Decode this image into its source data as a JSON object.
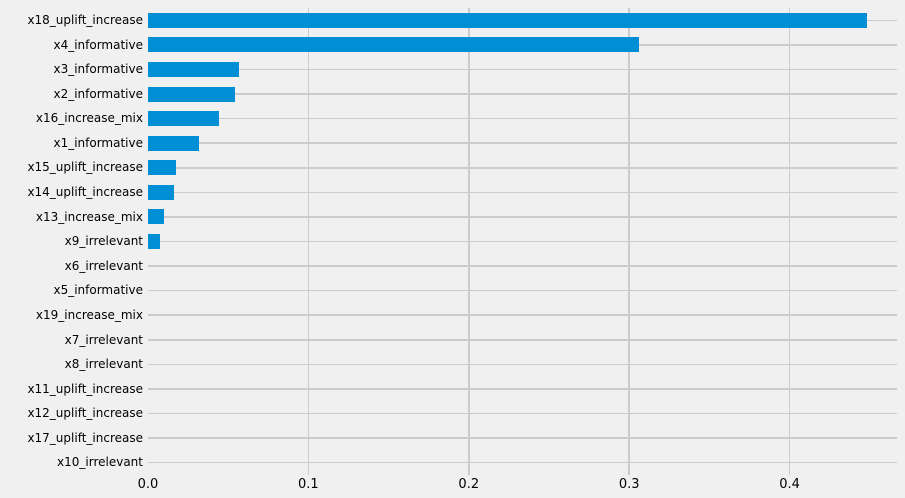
{
  "chart_data": {
    "type": "bar",
    "orientation": "horizontal",
    "title": "",
    "xlabel": "",
    "ylabel": "",
    "legend": "none",
    "grid": true,
    "categories": [
      "x18_uplift_increase",
      "x4_informative",
      "x3_informative",
      "x2_informative",
      "x16_increase_mix",
      "x1_informative",
      "x15_uplift_increase",
      "x14_uplift_increase",
      "x13_increase_mix",
      "x9_irrelevant",
      "x6_irrelevant",
      "x5_informative",
      "x19_increase_mix",
      "x7_irrelevant",
      "x8_irrelevant",
      "x11_uplift_increase",
      "x12_uplift_increase",
      "x17_uplift_increase",
      "x10_irrelevant"
    ],
    "values": [
      0.448,
      0.306,
      0.0565,
      0.0545,
      0.0441,
      0.0321,
      0.0177,
      0.0165,
      0.0102,
      0.0077,
      0,
      0,
      0,
      0,
      0,
      0,
      0,
      0,
      0
    ],
    "xlim": [
      0,
      0.467
    ],
    "x_ticks": [
      {
        "label": "0.0",
        "value": 0.0
      },
      {
        "label": "0.1",
        "value": 0.1
      },
      {
        "label": "0.2",
        "value": 0.2
      },
      {
        "label": "0.3",
        "value": 0.3
      },
      {
        "label": "0.4",
        "value": 0.4
      }
    ],
    "colors": {
      "bar": "#008fd5",
      "background": "#f0f0f0",
      "grid": "#cbcbcb",
      "text": "#000000"
    }
  }
}
